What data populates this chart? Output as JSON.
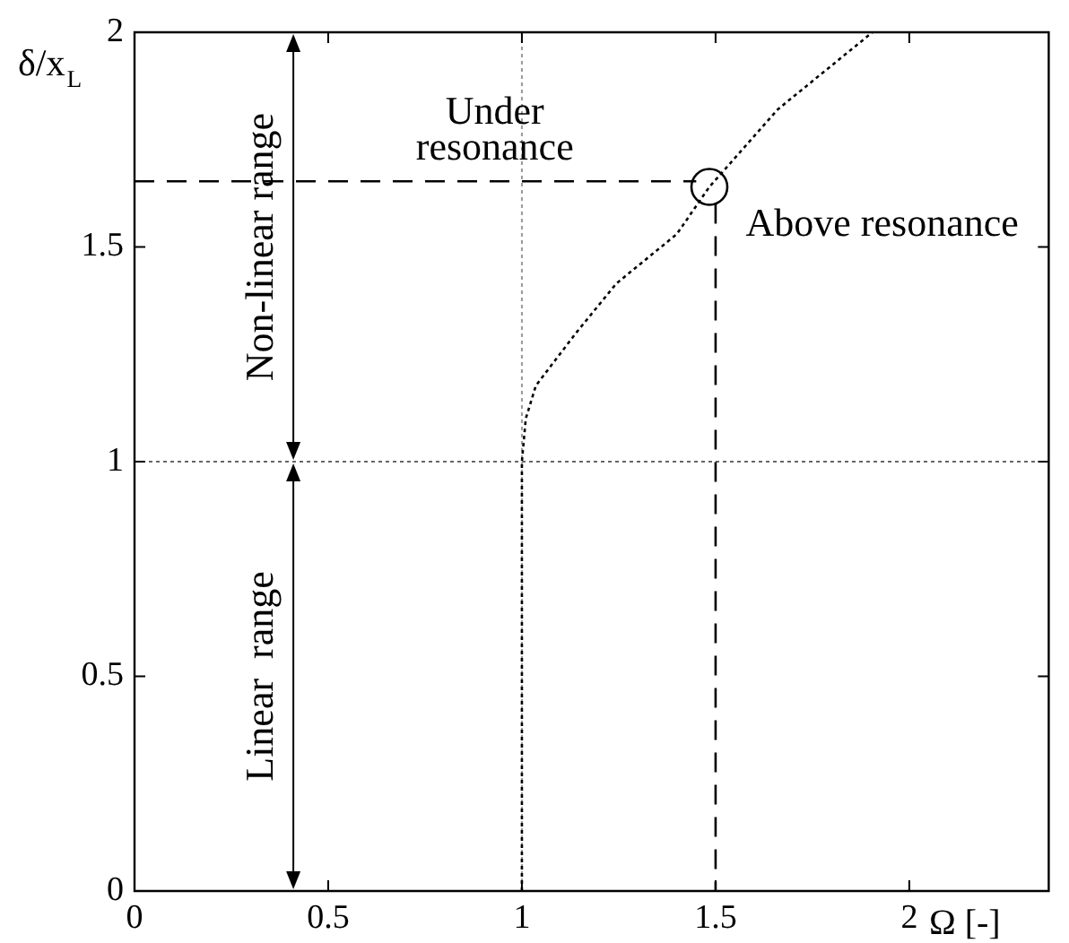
{
  "chart_data": {
    "type": "line",
    "xlabel": "Ω [-]",
    "ylabel": "δ/x$_{L}$",
    "xlim": [
      0,
      2.36
    ],
    "ylim": [
      0,
      2
    ],
    "xticks": [
      0,
      0.5,
      1,
      1.5,
      2
    ],
    "yticks": [
      0,
      0.5,
      1,
      1.5,
      2
    ],
    "grid": false,
    "legend": false,
    "series": [
      {
        "color": "#000000",
        "line_style": "dotted",
        "marker": "none",
        "x": [
          1,
          1,
          1.01,
          1.036,
          1.14,
          1.244,
          1.4,
          1.484,
          1.66,
          1.905
        ],
        "values": [
          0,
          1,
          1.1,
          1.177,
          1.3,
          1.415,
          1.53,
          1.64,
          1.82,
          2
        ]
      },
      {
        "type": "line",
        "color": "#000000",
        "line_style": "dashed",
        "marker": "none",
        "x": [
          0,
          1.45
        ],
        "values": [
          1.653,
          1.653
        ]
      },
      {
        "type": "line",
        "color": "#000000",
        "line_style": "dashed",
        "marker": "none",
        "x": [
          1.5,
          1.5
        ],
        "values": [
          1.6,
          0
        ]
      },
      {
        "type": "scatter",
        "color": "#000000",
        "marker": "circle",
        "x": [
          1.484
        ],
        "values": [
          1.64
        ]
      }
    ],
    "ref_lines": [
      {
        "axis": "x",
        "value": 1,
        "line_style": "dotted",
        "color": "#999999"
      },
      {
        "axis": "y",
        "value": 1,
        "line_style": "dotted",
        "color": "#666666"
      }
    ],
    "annotations": [
      "Under\nresonance",
      "Above resonance",
      "Non-linear range",
      "Linear  range"
    ]
  }
}
